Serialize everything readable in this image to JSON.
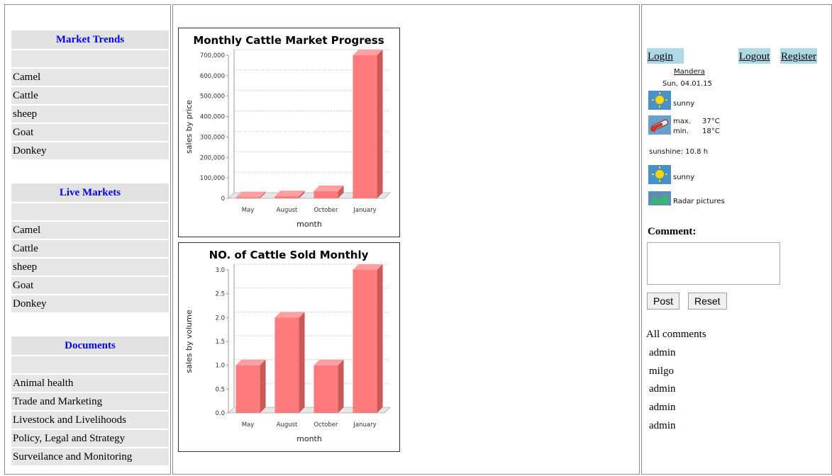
{
  "left_menu": {
    "sections": [
      {
        "title": "Market Trends",
        "items": [
          "Camel",
          "Cattle",
          "sheep",
          "Goat",
          "Donkey"
        ]
      },
      {
        "title": "Live Markets",
        "items": [
          "Camel",
          "Cattle",
          "sheep",
          "Goat",
          "Donkey"
        ]
      },
      {
        "title": "Documents",
        "items": [
          "Animal health",
          "Trade and Marketing",
          "Livestock and Livelihoods",
          "Policy, Legal and Strategy",
          "Surveilance and Monitoring"
        ]
      }
    ]
  },
  "chart_data": [
    {
      "type": "bar",
      "title": "Monthly Cattle Market Progress",
      "categories": [
        "May",
        "August",
        "October",
        "January"
      ],
      "values": [
        5000,
        10000,
        35000,
        700000
      ],
      "xlabel": "month",
      "ylabel": "sales by price",
      "ylim": [
        0,
        700000
      ],
      "yticks": [
        "0",
        "100,000",
        "200,000",
        "300,000",
        "400,000",
        "500,000",
        "600,000",
        "700,000"
      ],
      "bar_color": "#ff7b7b",
      "grid": true
    },
    {
      "type": "bar",
      "title": "NO. of Cattle Sold Monthly",
      "categories": [
        "May",
        "August",
        "October",
        "January"
      ],
      "values": [
        1.0,
        2.0,
        1.0,
        3.0
      ],
      "xlabel": "month",
      "ylabel": "sales by volume",
      "ylim": [
        0,
        3.0
      ],
      "yticks": [
        "0.0",
        "0.5",
        "1.0",
        "1.5",
        "2.0",
        "2.5",
        "3.0"
      ],
      "bar_color": "#ff7b7b",
      "grid": true
    }
  ],
  "auth": {
    "login": "Login",
    "logout": "Logout",
    "register": "Register"
  },
  "weather": {
    "location": "Mandera",
    "date": "Sun, 04.01.15",
    "condition1": "sunny",
    "max_label": "max.",
    "max_value": "37°C",
    "min_label": "min.",
    "min_value": "18°C",
    "sunshine": "sunshine: 10.8 h",
    "condition2": "sunny",
    "radar": "Radar pictures"
  },
  "comment": {
    "label": "Comment:",
    "placeholder": "",
    "post": "Post",
    "reset": "Reset",
    "all_comments": "All comments",
    "users": [
      "admin",
      "milgo",
      "admin",
      "admin",
      "admin"
    ]
  }
}
